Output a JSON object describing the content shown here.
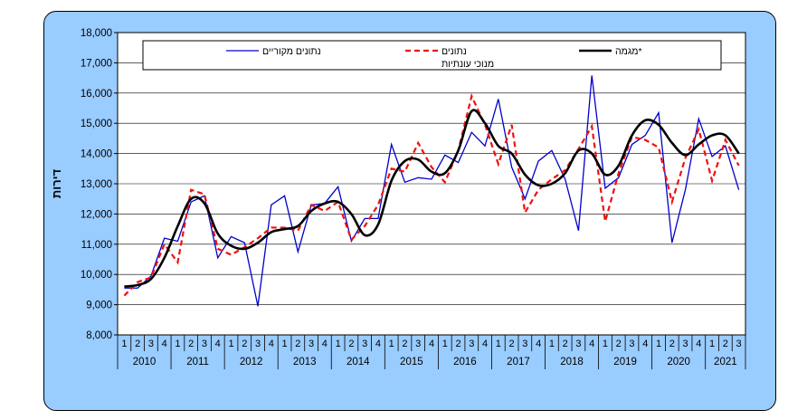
{
  "chart_data": {
    "type": "line",
    "title": "",
    "ylabel": "דירות",
    "xlabel": "",
    "ylim": [
      8000,
      18000
    ],
    "yticks": [
      "8,000",
      "9,000",
      "10,000",
      "11,000",
      "12,000",
      "13,000",
      "14,000",
      "15,000",
      "16,000",
      "17,000",
      "18,000"
    ],
    "years": [
      "2010",
      "2011",
      "2012",
      "2013",
      "2014",
      "2015",
      "2016",
      "2017",
      "2018",
      "2019",
      "2020",
      "2021"
    ],
    "quarters": [
      "1",
      "2",
      "3",
      "4"
    ],
    "legend": {
      "placement": "top",
      "entries": [
        "נתונים מקוריים",
        "נתונים",
        "מנוכי עונתיות",
        "מגמה*"
      ]
    },
    "series": [
      {
        "name": "נתונים מקוריים",
        "color": "#0000cc",
        "style": "solid",
        "values": [
          9550,
          9550,
          9950,
          11200,
          11100,
          12400,
          12600,
          10550,
          11250,
          11050,
          8950,
          12300,
          12600,
          10750,
          12300,
          12350,
          12900,
          11100,
          11850,
          11850,
          14300,
          13050,
          13200,
          13150,
          13950,
          13700,
          14700,
          14250,
          15800,
          13550,
          12500,
          13750,
          14100,
          13150,
          11450,
          16580,
          12850,
          13200,
          14300,
          14600,
          15350,
          11050,
          12800,
          15150,
          13900,
          14250,
          12800
        ]
      },
      {
        "name": "נתונים מנוכי עונתיות",
        "color": "#ee1111",
        "style": "dashed",
        "values": [
          9300,
          9750,
          9900,
          11000,
          10400,
          12800,
          12650,
          10850,
          10650,
          10900,
          11200,
          11550,
          11550,
          11450,
          12300,
          12100,
          12400,
          11150,
          11600,
          12300,
          13500,
          13400,
          14350,
          13550,
          13050,
          14100,
          15900,
          14950,
          13650,
          14950,
          12050,
          12800,
          13150,
          13450,
          14150,
          14900,
          11750,
          13350,
          14550,
          14450,
          14200,
          12400,
          13850,
          14800,
          13100,
          14450,
          13600
        ]
      },
      {
        "name": "מגמה*",
        "color": "#000000",
        "style": "solid-thick",
        "values": [
          9600,
          9650,
          9850,
          10550,
          11600,
          12500,
          12350,
          11350,
          10950,
          10850,
          11050,
          11400,
          11500,
          11600,
          12100,
          12350,
          12400,
          12000,
          11300,
          11650,
          13100,
          13750,
          13800,
          13400,
          13350,
          14100,
          15400,
          15000,
          14250,
          14000,
          13300,
          12950,
          13000,
          13350,
          14100,
          14000,
          13300,
          13600,
          14600,
          15100,
          14950,
          14350,
          13950,
          14300,
          14600,
          14600,
          14000
        ]
      }
    ]
  }
}
